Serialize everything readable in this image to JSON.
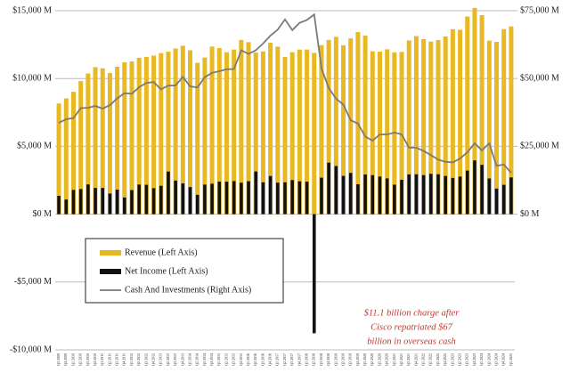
{
  "chart_data": {
    "type": "bar_line",
    "categories": [
      "Q3 2009",
      "Q4 2009",
      "Q1 2010",
      "Q2 2010",
      "Q3 2010",
      "Q4 2010",
      "Q1 2011",
      "Q2 2011",
      "Q3 2011",
      "Q4 2011",
      "Q1 2012",
      "Q2 2012",
      "Q3 2012",
      "Q4 2012",
      "Q1 2013",
      "Q2 2013",
      "Q3 2013",
      "Q4 2013",
      "Q1 2014",
      "Q2 2014",
      "Q3 2014",
      "Q4 2014",
      "Q1 2015",
      "Q2 2015",
      "Q3 2015",
      "Q4 2015",
      "Q1 2016",
      "Q2 2016",
      "Q3 2016",
      "Q4 2016",
      "Q1 2017",
      "Q2 2017",
      "Q3 2017",
      "Q4 2017",
      "Q1 2018",
      "Q2 2018",
      "Q3 2018",
      "Q4 2018",
      "Q1 2019",
      "Q2 2019",
      "Q3 2019",
      "Q4 2019",
      "Q1 2020",
      "Q2 2020",
      "Q3 2020",
      "Q4 2020",
      "Q1 2021",
      "Q2 2021",
      "Q3 2021",
      "Q4 2021",
      "Q1 2022",
      "Q2 2022",
      "Q3 2022",
      "Q4 2022",
      "Q1 2023",
      "Q2 2023",
      "Q3 2023",
      "Q4 2023",
      "Q1 2024",
      "Q2 2024",
      "Q3 2024",
      "Q4 2024",
      "Q1 2025"
    ],
    "series": [
      {
        "name": "Revenue (Left Axis)",
        "color": "#e8b923",
        "values": [
          8162,
          8535,
          9021,
          9815,
          10368,
          10836,
          10750,
          10407,
          10866,
          11195,
          11256,
          11527,
          11588,
          11690,
          11876,
          11978,
          12216,
          12417,
          12085,
          11155,
          11545,
          12357,
          12245,
          11936,
          12137,
          12843,
          12682,
          11927,
          12000,
          12638,
          12352,
          11580,
          11940,
          12133,
          12136,
          11887,
          12463,
          12844,
          13072,
          12446,
          12958,
          13428,
          13159,
          12005,
          11983,
          12154,
          11929,
          11960,
          12803,
          13126,
          12900,
          12723,
          12835,
          13102,
          13632,
          13592,
          14572,
          15203,
          14668,
          12791,
          12702,
          13640,
          13841
        ]
      },
      {
        "name": "Net Income (Left Axis)",
        "color": "#111111",
        "values": [
          1348,
          1081,
          1787,
          1853,
          2192,
          1935,
          1930,
          1521,
          1807,
          1232,
          1777,
          2183,
          2165,
          1917,
          2092,
          3143,
          2478,
          2270,
          1999,
          1429,
          2181,
          2247,
          2400,
          2397,
          2439,
          2319,
          2430,
          3147,
          2349,
          2813,
          2322,
          2348,
          2515,
          2424,
          2394,
          -8778,
          2691,
          3800,
          3550,
          2822,
          3044,
          2206,
          2925,
          2878,
          2774,
          2637,
          2174,
          2536,
          2932,
          2940,
          2880,
          2974,
          2940,
          2815,
          2670,
          2773,
          3213,
          3963,
          3638,
          2634,
          1886,
          2162,
          2710
        ]
      },
      {
        "name": "Cash And Investments (Right Axis)",
        "color": "#7a7a7a",
        "axis": "y2",
        "values": [
          33700,
          35000,
          35400,
          39100,
          39200,
          39900,
          38900,
          40200,
          42700,
          44600,
          44400,
          46800,
          48400,
          48700,
          46000,
          47400,
          47400,
          50600,
          47100,
          46700,
          50500,
          52100,
          52700,
          53400,
          53500,
          60400,
          59100,
          60400,
          62900,
          65800,
          68000,
          71800,
          67800,
          70500,
          71600,
          73600,
          53700,
          46500,
          42600,
          40400,
          34600,
          33400,
          28600,
          27100,
          29400,
          29400,
          30100,
          29400,
          24500,
          24500,
          23300,
          21800,
          20100,
          19300,
          19100,
          20500,
          22800,
          26100,
          23500,
          26100,
          17800,
          18300,
          15300
        ]
      }
    ],
    "ylim": [
      -10000,
      15000
    ],
    "yticks": [
      {
        "value": -10000,
        "label": "-$10,000 M"
      },
      {
        "value": -5000,
        "label": "-$5,000 M"
      },
      {
        "value": 0,
        "label": "$0 M"
      },
      {
        "value": 5000,
        "label": "$5,000 M"
      },
      {
        "value": 10000,
        "label": "$10,000 M"
      },
      {
        "value": 15000,
        "label": "$15,000 M"
      }
    ],
    "y2lim": [
      -50000,
      75000
    ],
    "y2ticks": [
      {
        "value": 0,
        "label": "$0 M"
      },
      {
        "value": 25000,
        "label": "$25,000 M"
      },
      {
        "value": 50000,
        "label": "$50,000 M"
      },
      {
        "value": 75000,
        "label": "$75,000 M"
      }
    ],
    "grid": true,
    "annotation": [
      "$11.1 billion charge after",
      "Cisco repatriated $67",
      "billion in overseas cash"
    ]
  }
}
